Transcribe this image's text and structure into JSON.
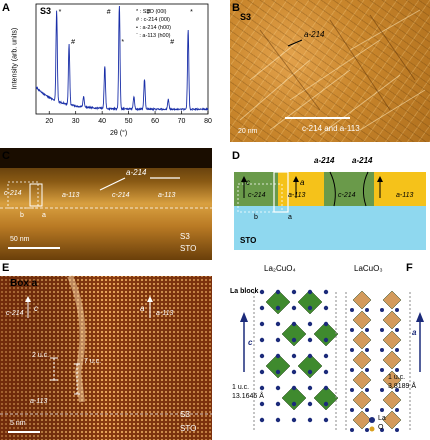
{
  "panels": {
    "a": {
      "letter": "A",
      "sample": "S3",
      "ylabel": "Intensity (arb. units)",
      "xlabel": "2θ (°)",
      "xticks": [
        "20",
        "30",
        "40",
        "50",
        "60",
        "70",
        "80"
      ],
      "legend": [
        {
          "symbol": "*",
          "label": ": STO (00l)"
        },
        {
          "symbol": "#",
          "label": ": c-214 (00l)"
        },
        {
          "symbol": "•",
          "label": ": a-214 (h00)"
        },
        {
          "symbol": "¨",
          "label": ": a-113 (h00)"
        }
      ],
      "peak_marks": [
        "*",
        "#",
        "#",
        "*",
        "#",
        "#",
        "*"
      ]
    },
    "b": {
      "letter": "B",
      "sample": "S3",
      "label_a214": "a-214",
      "label_mix": "c-214 and a-113",
      "scale": "20 nm"
    },
    "c": {
      "letter": "C",
      "label_a214": "a-214",
      "label_c214_left": "c-214",
      "label_a113_left": "a-113",
      "label_c214_right": "c-214",
      "label_a113_right": "a-113",
      "label_b": "b",
      "label_a": "a",
      "scale": "50 nm",
      "sample": "S3",
      "substrate": "STO"
    },
    "d": {
      "letter": "D",
      "top_a214_left": "a-214",
      "top_a214_right": "a-214",
      "c_axis": "c",
      "a_axis": "a",
      "label_c214_left": "c-214",
      "label_a113_left": "a-113",
      "label_c214_right": "c-214",
      "label_a113_right": "a-113",
      "substrate": "STO",
      "label_b": "b",
      "label_a": "a"
    },
    "e": {
      "letter": "E",
      "box": "Box a",
      "label_c214": "c-214",
      "c_axis": "c",
      "a_axis": "a",
      "label_a113": "a-113",
      "uc2": "2 u.c.",
      "uc7": "7 u.c.",
      "label_a113_bottom": "a-113",
      "sample": "S3",
      "substrate": "STO",
      "scale": "5 nm"
    },
    "f": {
      "letter": "F",
      "title_left": "La₂CuO₄",
      "title_right": "LaCuO₃",
      "la_block": "La block",
      "c_axis": "c",
      "a_axis": "a",
      "uc_left_1": "1 u.c.",
      "uc_left_2": "13.1646 Å",
      "uc_right_1": "1 u.c.",
      "uc_right_2": "3.8189 Å",
      "legend_la": "La",
      "legend_o": "O"
    }
  },
  "colors": {
    "xrd_line": "#1a2fa8",
    "green_phase": "#6a9a4a",
    "yellow_phase": "#f5c21a",
    "substrate": "#8fd8ef",
    "la_atom": "#1b2a7a",
    "octa_green": "#3f8a2e",
    "octa_tan": "#d39a5c"
  }
}
